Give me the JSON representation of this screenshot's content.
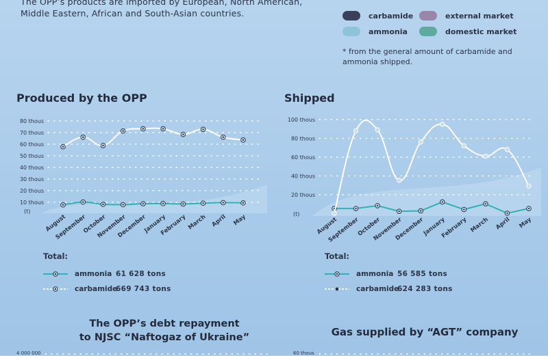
{
  "intro_text": "The OPP’s products are imported by European, North American, Middle Eastern, African and South-Asian countries.",
  "legend": {
    "items": [
      {
        "label": "carbamide",
        "color": "#3a3f5c"
      },
      {
        "label": "external market",
        "color": "#9a86aa"
      },
      {
        "label": "ammonia",
        "color": "#8fc3da"
      },
      {
        "label": "domestic market",
        "color": "#5ea9a0"
      }
    ],
    "note": "* from the general amount of carbamide and ammonia shipped."
  },
  "colors": {
    "ammonia_line": "#2fb2b3",
    "carbamide_line": "#ffffff",
    "axis_dots": "#ffffff",
    "marker_dark": "#2c3448"
  },
  "chart_data": [
    {
      "title": "Produced by the OPP",
      "type": "line",
      "y_unit_label": "(t)",
      "y_ticks": [
        "80 thous",
        "70 thous",
        "60 thous",
        "50 thous",
        "40 thous",
        "30 thous",
        "20 thous",
        "10 thous"
      ],
      "ylim": [
        0,
        80000
      ],
      "categories": [
        "August",
        "September",
        "October",
        "November",
        "December",
        "January",
        "February",
        "March",
        "April",
        "May"
      ],
      "series": [
        {
          "name": "ammonia",
          "values": [
            5000,
            7500,
            5500,
            5200,
            6000,
            6200,
            5800,
            6500,
            7000,
            6800
          ]
        },
        {
          "name": "carbamide",
          "values": [
            57000,
            65500,
            58000,
            71000,
            73000,
            73000,
            68000,
            72500,
            65500,
            63000
          ]
        }
      ],
      "totals": {
        "header": "Total:",
        "rows": [
          {
            "name": "ammonia",
            "value": "61 628 tons"
          },
          {
            "name": "carbamide",
            "value": "669 743 tons"
          }
        ]
      }
    },
    {
      "title": "Shipped",
      "type": "line",
      "y_unit_label": "(t)",
      "y_ticks": [
        "100 thous",
        "80 thous",
        "60 thous",
        "40 thous",
        "20 thous"
      ],
      "ylim": [
        0,
        100000
      ],
      "categories": [
        "August",
        "September",
        "October",
        "November",
        "December",
        "January",
        "February",
        "March",
        "April",
        "May"
      ],
      "series": [
        {
          "name": "ammonia",
          "values": [
            5000,
            5000,
            8000,
            2000,
            2500,
            12000,
            4000,
            10000,
            0,
            5000
          ]
        },
        {
          "name": "carbamide",
          "values": [
            0,
            88000,
            89000,
            35000,
            76000,
            95000,
            72000,
            61000,
            68000,
            29000
          ]
        }
      ],
      "totals": {
        "header": "Total:",
        "rows": [
          {
            "name": "ammonia",
            "value": "56 585 tons"
          },
          {
            "name": "carbamide",
            "value": "624 283 tons"
          }
        ]
      }
    }
  ],
  "bottom": {
    "left_title": "The OPP’s debt repayment\nto NJSC “Naftogaz of Ukraine”",
    "left_tick": "4 000 000",
    "right_title": "Gas supplied by “AGT” company",
    "right_tick": "60 thous"
  }
}
